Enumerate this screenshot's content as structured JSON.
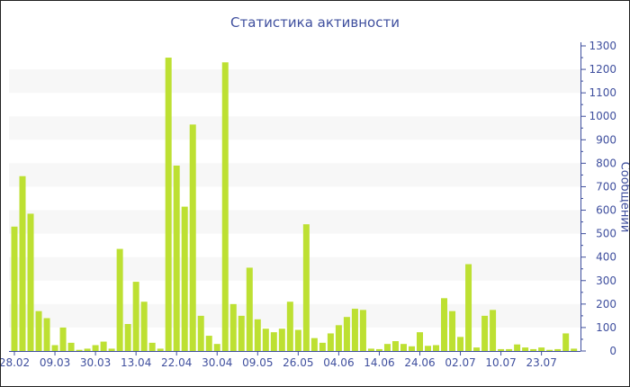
{
  "chart_data": {
    "type": "bar",
    "title": "Статистика активности",
    "ylabel": "Сообщений",
    "xlabel": "",
    "ylim": [
      0,
      1300
    ],
    "y_axis_position": "right",
    "y_ticks": [
      0,
      100,
      200,
      300,
      400,
      500,
      600,
      700,
      800,
      900,
      1000,
      1100,
      1200,
      1300
    ],
    "x_tick_labels": [
      {
        "index": 0,
        "label": "28.02"
      },
      {
        "index": 5,
        "label": "09.03"
      },
      {
        "index": 10,
        "label": "30.03"
      },
      {
        "index": 15,
        "label": "13.04"
      },
      {
        "index": 20,
        "label": "22.04"
      },
      {
        "index": 25,
        "label": "30.04"
      },
      {
        "index": 30,
        "label": "09.05"
      },
      {
        "index": 35,
        "label": "26.05"
      },
      {
        "index": 40,
        "label": "04.06"
      },
      {
        "index": 45,
        "label": "14.06"
      },
      {
        "index": 50,
        "label": "24.06"
      },
      {
        "index": 55,
        "label": "02.07"
      },
      {
        "index": 60,
        "label": "10.07"
      },
      {
        "index": 65,
        "label": "23.07"
      }
    ],
    "values": [
      530,
      745,
      585,
      170,
      140,
      25,
      100,
      35,
      5,
      10,
      25,
      40,
      10,
      435,
      115,
      295,
      210,
      35,
      10,
      1250,
      790,
      615,
      965,
      150,
      65,
      30,
      1230,
      200,
      150,
      355,
      135,
      95,
      80,
      95,
      210,
      90,
      540,
      55,
      35,
      75,
      110,
      145,
      180,
      175,
      10,
      8,
      30,
      42,
      30,
      20,
      80,
      22,
      25,
      225,
      170,
      60,
      370,
      15,
      150,
      175,
      8,
      8,
      28,
      15,
      8,
      15,
      5,
      8,
      75,
      10
    ],
    "grid": "alternating horizontal bands",
    "colors": {
      "bar": "#bde032",
      "axis": "#3f4f9e",
      "band": "#f7f7f7"
    }
  }
}
